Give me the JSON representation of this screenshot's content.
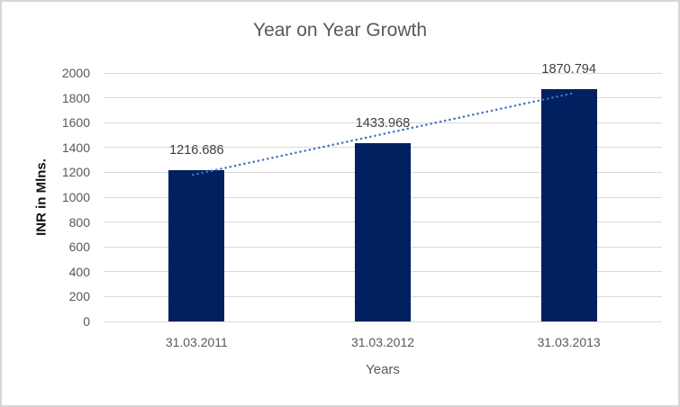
{
  "chart_data": {
    "type": "bar",
    "title": "Year on Year Growth",
    "xlabel": "Years",
    "ylabel": "INR in Mlns.",
    "categories": [
      "31.03.2011",
      "31.03.2012",
      "31.03.2013"
    ],
    "values": [
      1216.686,
      1433.968,
      1870.794
    ],
    "value_labels": [
      "1216.686",
      "1433.968",
      "1870.794"
    ],
    "ylim": [
      0,
      2000
    ],
    "yticks": [
      0,
      200,
      400,
      600,
      800,
      1000,
      1200,
      1400,
      1600,
      1800,
      2000
    ],
    "grid": true,
    "legend": false,
    "bar_color": "#002060",
    "trendline": {
      "type": "linear",
      "style": "dotted",
      "color": "#4472C4"
    },
    "colors": {
      "background": "#FFFFFF",
      "border": "#D6D6D6",
      "gridline": "#D9D9D9",
      "title_text": "#595959",
      "axis_tick_text": "#595959",
      "axis_title_text": "#595959",
      "y_axis_title_text": "#111111",
      "value_label_text": "#404040"
    }
  }
}
